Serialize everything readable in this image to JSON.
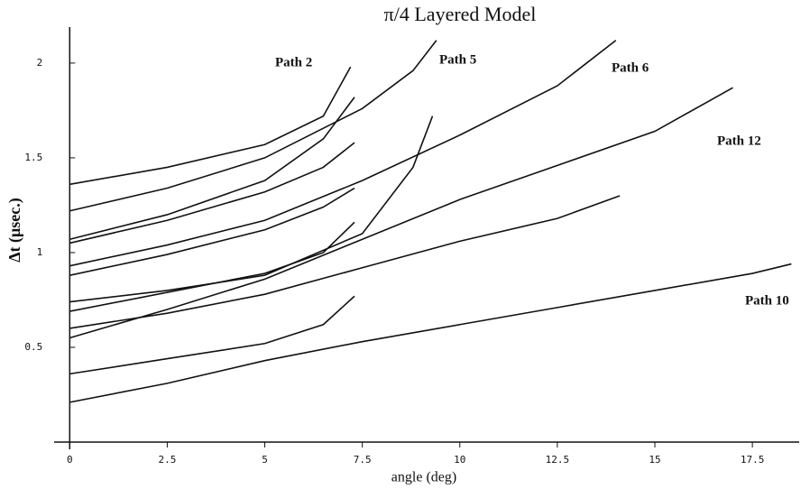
{
  "chart_data": {
    "type": "line",
    "title": "π/4 Layered Model",
    "xlabel": "angle (deg)",
    "ylabel": "Δt (μsec.)",
    "xlim": [
      -0.4,
      18.7
    ],
    "ylim": [
      0,
      2.19
    ],
    "xticks": [
      0,
      2.5,
      5,
      7.5,
      10,
      12.5,
      15,
      17.5
    ],
    "yticks": [
      0.5,
      1,
      1.5,
      2
    ],
    "annotations": [
      "Path 2",
      "Path 5",
      "Path 6",
      "Path 12",
      "Path 10"
    ],
    "series": [
      {
        "color": "#111111",
        "x": [
          0,
          2.5,
          5,
          7.5,
          10,
          12.5,
          15,
          17.5,
          18.5
        ],
        "values": [
          0.21,
          0.31,
          0.43,
          0.53,
          0.62,
          0.71,
          0.8,
          0.89,
          0.94
        ]
      },
      {
        "color": "#111111",
        "x": [
          0,
          2.5,
          5,
          6.5,
          7.3
        ],
        "values": [
          0.36,
          0.44,
          0.52,
          0.62,
          0.77
        ]
      },
      {
        "color": "#111111",
        "x": [
          0,
          2.5,
          5,
          7.5,
          10,
          12.5,
          15,
          17
        ],
        "values": [
          0.55,
          0.7,
          0.86,
          1.07,
          1.28,
          1.46,
          1.64,
          1.87
        ]
      },
      {
        "color": "#111111",
        "x": [
          0,
          2.5,
          5,
          7.5,
          10,
          12.5,
          14.1
        ],
        "values": [
          0.6,
          0.68,
          0.78,
          0.92,
          1.06,
          1.18,
          1.3
        ]
      },
      {
        "color": "#111111",
        "x": [
          0,
          2.5,
          5,
          6.5,
          7.3
        ],
        "values": [
          0.69,
          0.79,
          0.89,
          1.0,
          1.16
        ]
      },
      {
        "color": "#111111",
        "x": [
          0,
          2.5,
          5,
          7.5,
          8.8,
          9.3
        ],
        "values": [
          0.74,
          0.8,
          0.88,
          1.1,
          1.45,
          1.72
        ]
      },
      {
        "color": "#111111",
        "x": [
          0,
          2.5,
          5,
          6.5,
          7.3
        ],
        "values": [
          0.88,
          0.99,
          1.12,
          1.24,
          1.34
        ]
      },
      {
        "color": "#111111",
        "x": [
          0,
          2.5,
          5,
          7.5,
          10,
          12.5,
          14
        ],
        "values": [
          0.93,
          1.04,
          1.17,
          1.38,
          1.62,
          1.88,
          2.12
        ]
      },
      {
        "color": "#111111",
        "x": [
          0,
          2.5,
          5,
          6.5,
          7.3
        ],
        "values": [
          1.05,
          1.17,
          1.32,
          1.45,
          1.58
        ]
      },
      {
        "color": "#111111",
        "x": [
          0,
          2.5,
          5,
          6.5,
          7.3
        ],
        "values": [
          1.07,
          1.2,
          1.38,
          1.6,
          1.82
        ]
      },
      {
        "color": "#111111",
        "x": [
          0,
          2.5,
          5,
          7.5,
          8.8,
          9.4
        ],
        "values": [
          1.22,
          1.34,
          1.5,
          1.76,
          1.96,
          2.12
        ]
      },
      {
        "color": "#111111",
        "x": [
          0,
          2.5,
          5,
          6.5,
          7.2
        ],
        "values": [
          1.36,
          1.45,
          1.57,
          1.72,
          1.98
        ]
      }
    ]
  }
}
